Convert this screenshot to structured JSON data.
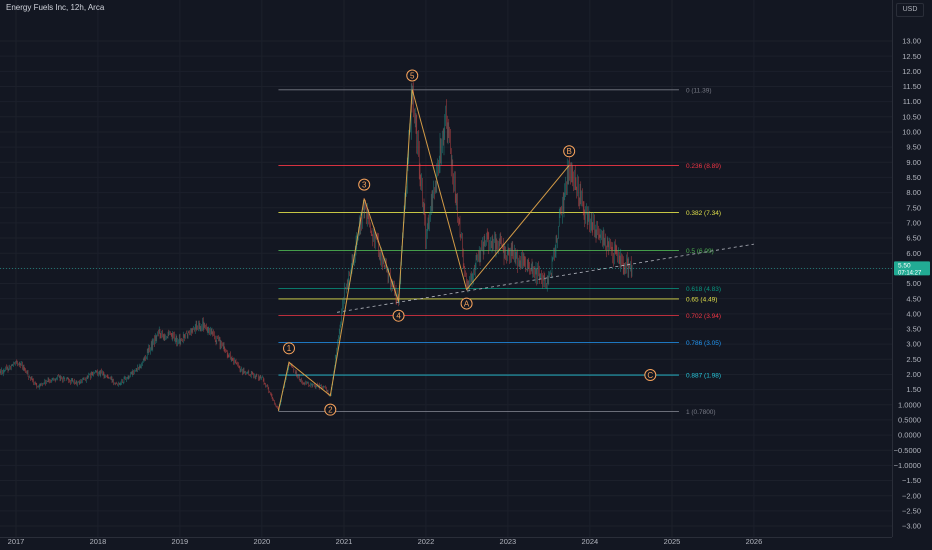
{
  "chart_title": "Energy Fuels Inc, 12h, Arca",
  "currency": "USD",
  "colors": {
    "background": "#131722",
    "up_candle": "#26a69a",
    "down_candle": "#ef5350",
    "wave_label": "#f7a35c",
    "axis_text": "#b2b5be"
  },
  "chart_data": {
    "type": "candlestick",
    "x_ticks": [
      "2017",
      "2018",
      "2019",
      "2020",
      "2021",
      "2022",
      "2023",
      "2024",
      "2025",
      "2026"
    ],
    "y_ticks": [
      "13.00",
      "12.50",
      "12.00",
      "11.50",
      "11.00",
      "10.50",
      "10.00",
      "9.50",
      "9.00",
      "8.50",
      "8.00",
      "7.50",
      "7.00",
      "6.50",
      "6.00",
      "5.50",
      "5.00",
      "4.50",
      "4.00",
      "3.50",
      "3.00",
      "2.50",
      "2.00",
      "1.50",
      "1.0000",
      "0.5000",
      "0.0000",
      "−0.5000",
      "−1.0000",
      "−1.50",
      "−2.00",
      "−2.50",
      "−3.00"
    ],
    "ylim": [
      -3.4,
      13.6
    ],
    "price_label": "5.50",
    "countdown_label": "07:14:27",
    "price_path": [
      [
        "2016-10-01",
        2.0
      ],
      [
        "2017-01-15",
        2.4
      ],
      [
        "2017-04-01",
        1.6
      ],
      [
        "2017-07-01",
        1.9
      ],
      [
        "2017-10-01",
        1.7
      ],
      [
        "2018-01-01",
        2.1
      ],
      [
        "2018-04-01",
        1.7
      ],
      [
        "2018-07-01",
        2.2
      ],
      [
        "2018-10-01",
        3.4
      ],
      [
        "2019-01-01",
        3.1
      ],
      [
        "2019-04-01",
        3.7
      ],
      [
        "2019-07-01",
        3.0
      ],
      [
        "2019-10-01",
        2.1
      ],
      [
        "2020-01-01",
        1.9
      ],
      [
        "2020-03-15",
        0.8
      ],
      [
        "2020-05-01",
        2.4
      ],
      [
        "2020-07-01",
        1.7
      ],
      [
        "2020-10-01",
        1.6
      ],
      [
        "2020-11-01",
        1.3
      ],
      [
        "2021-01-01",
        4.6
      ],
      [
        "2021-04-01",
        7.5
      ],
      [
        "2021-07-01",
        5.6
      ],
      [
        "2021-09-01",
        4.4
      ],
      [
        "2021-11-01",
        11.4
      ],
      [
        "2022-01-01",
        6.5
      ],
      [
        "2022-04-01",
        10.5
      ],
      [
        "2022-07-01",
        4.9
      ],
      [
        "2022-10-01",
        6.5
      ],
      [
        "2023-01-01",
        6.0
      ],
      [
        "2023-04-01",
        5.6
      ],
      [
        "2023-07-01",
        5.0
      ],
      [
        "2023-10-01",
        8.9
      ],
      [
        "2024-01-01",
        7.0
      ],
      [
        "2024-04-01",
        6.1
      ],
      [
        "2024-07-01",
        5.5
      ]
    ],
    "fib_levels": [
      {
        "label": "0 (11.39)",
        "price": 11.39,
        "color": "#787b86"
      },
      {
        "label": "0.236 (8.89)",
        "price": 8.89,
        "color": "#f23645"
      },
      {
        "label": "0.382 (7.34)",
        "price": 7.34,
        "color": "#e0e04a"
      },
      {
        "label": "0.5 (6.09)",
        "price": 6.09,
        "color": "#4caf50"
      },
      {
        "label": "0.618 (4.83)",
        "price": 4.83,
        "color": "#089981"
      },
      {
        "label": "0.65 (4.49)",
        "price": 4.49,
        "color": "#e0e04a"
      },
      {
        "label": "0.702 (3.94)",
        "price": 3.94,
        "color": "#f23645"
      },
      {
        "label": "0.786 (3.05)",
        "price": 3.05,
        "color": "#2196f3"
      },
      {
        "label": "0.887 (1.98)",
        "price": 1.98,
        "color": "#26c6da"
      },
      {
        "label": "1 (0.7800)",
        "price": 0.78,
        "color": "#787b86"
      }
    ],
    "waves": [
      {
        "label": "1",
        "date": "2020-05-01",
        "price": 2.4,
        "pos": "above"
      },
      {
        "label": "2",
        "date": "2020-11-01",
        "price": 1.3,
        "pos": "below"
      },
      {
        "label": "3",
        "date": "2021-04-01",
        "price": 7.8,
        "pos": "above"
      },
      {
        "label": "4",
        "date": "2021-09-01",
        "price": 4.4,
        "pos": "below"
      },
      {
        "label": "5",
        "date": "2021-11-01",
        "price": 11.4,
        "pos": "above"
      },
      {
        "label": "A",
        "date": "2022-07-01",
        "price": 4.8,
        "pos": "below"
      },
      {
        "label": "B",
        "date": "2023-10-01",
        "price": 8.9,
        "pos": "above"
      },
      {
        "label": "C",
        "date": "2024-11-01",
        "price": 1.98,
        "pos": "right"
      }
    ],
    "trendline": [
      [
        "2020-12-01",
        4.05
      ],
      [
        "2026-01-01",
        6.3
      ]
    ]
  }
}
